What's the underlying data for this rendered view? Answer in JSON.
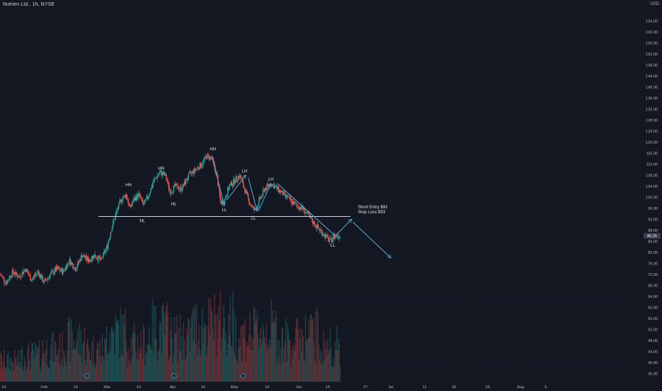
{
  "header": {
    "title": "Nutrien Ltd., 1h, NYSE",
    "currency": "USD"
  },
  "price_tag": "86.26",
  "colors": {
    "background": "#131722",
    "up": "#26a69a",
    "down": "#ef5350",
    "annotation": "#5b9cc7",
    "support_line": "#d1d4dc",
    "grid": "#1f2330"
  },
  "chart_data": {
    "type": "candlestick",
    "ylim": [
      33,
      168
    ],
    "y_ticks": [
      36,
      40,
      44,
      48,
      52,
      56,
      60,
      64,
      68,
      72,
      76,
      80,
      84,
      88,
      92,
      96,
      100,
      104,
      108,
      112,
      116,
      120,
      124,
      128,
      132,
      136,
      140,
      144,
      148,
      152,
      156,
      160,
      164
    ],
    "x_ticks": [
      {
        "label": "14",
        "t": 0.03
      },
      {
        "label": "Feb",
        "t": 0.35
      },
      {
        "label": "14",
        "t": 0.6
      },
      {
        "label": "Mar",
        "t": 0.85
      },
      {
        "label": "14",
        "t": 1.1
      },
      {
        "label": "Apr",
        "t": 1.37
      },
      {
        "label": "14",
        "t": 1.61
      },
      {
        "label": "May",
        "t": 1.86
      },
      {
        "label": "16",
        "t": 2.12
      },
      {
        "label": "Jun",
        "t": 2.37
      },
      {
        "label": "14",
        "t": 2.6
      },
      {
        "label": "27",
        "t": 2.9
      },
      {
        "label": "Jul",
        "t": 3.1
      },
      {
        "label": "11",
        "t": 3.37
      },
      {
        "label": "18",
        "t": 3.6
      },
      {
        "label": "25",
        "t": 3.87
      },
      {
        "label": "Aug",
        "t": 4.13
      },
      {
        "label": "5",
        "t": 4.33
      }
    ],
    "x_range": [
      0,
      5.1
    ],
    "price_path": [
      [
        0.0,
        72
      ],
      [
        0.05,
        69
      ],
      [
        0.1,
        73
      ],
      [
        0.15,
        71
      ],
      [
        0.2,
        74
      ],
      [
        0.25,
        70
      ],
      [
        0.3,
        73
      ],
      [
        0.35,
        69
      ],
      [
        0.4,
        72
      ],
      [
        0.45,
        74
      ],
      [
        0.5,
        73
      ],
      [
        0.55,
        77
      ],
      [
        0.6,
        74
      ],
      [
        0.65,
        79
      ],
      [
        0.7,
        77
      ],
      [
        0.75,
        79
      ],
      [
        0.8,
        77
      ],
      [
        0.85,
        82
      ],
      [
        0.88,
        88
      ],
      [
        0.92,
        94
      ],
      [
        0.96,
        99
      ],
      [
        1.0,
        101
      ],
      [
        1.03,
        96
      ],
      [
        1.06,
        99
      ],
      [
        1.1,
        101
      ],
      [
        1.14,
        97
      ],
      [
        1.18,
        101
      ],
      [
        1.22,
        106
      ],
      [
        1.27,
        109
      ],
      [
        1.31,
        108
      ],
      [
        1.35,
        102
      ],
      [
        1.39,
        104
      ],
      [
        1.44,
        103
      ],
      [
        1.5,
        108
      ],
      [
        1.55,
        110
      ],
      [
        1.6,
        112
      ],
      [
        1.64,
        115
      ],
      [
        1.68,
        114
      ],
      [
        1.72,
        108
      ],
      [
        1.75,
        98
      ],
      [
        1.78,
        99
      ],
      [
        1.82,
        104
      ],
      [
        1.86,
        106
      ],
      [
        1.9,
        108
      ],
      [
        1.94,
        103
      ],
      [
        1.98,
        98
      ],
      [
        2.02,
        95
      ],
      [
        2.06,
        99
      ],
      [
        2.1,
        103
      ],
      [
        2.15,
        105
      ],
      [
        2.2,
        103
      ],
      [
        2.25,
        101
      ],
      [
        2.3,
        99
      ],
      [
        2.35,
        97
      ],
      [
        2.4,
        96
      ],
      [
        2.45,
        93
      ],
      [
        2.5,
        90
      ],
      [
        2.54,
        88
      ],
      [
        2.58,
        86
      ],
      [
        2.62,
        84
      ],
      [
        2.66,
        86
      ],
      [
        2.7,
        86
      ]
    ],
    "volume_profile": [
      0.35,
      0.45,
      0.55,
      0.7,
      0.55,
      0.85,
      0.65,
      0.9,
      0.75,
      0.95,
      1.0,
      0.8,
      0.9,
      0.7,
      0.8,
      0.6
    ],
    "volume_max_ratio": 0.25,
    "support_level": 93,
    "support_x": [
      0.78,
      2.78
    ],
    "labels": [
      {
        "text": "HH",
        "t": 1.02,
        "y": 104
      },
      {
        "text": "HL",
        "t": 1.13,
        "y": 91
      },
      {
        "text": "HH",
        "t": 1.28,
        "y": 110
      },
      {
        "text": "HL",
        "t": 1.38,
        "y": 97
      },
      {
        "text": "HH",
        "t": 1.69,
        "y": 117
      },
      {
        "text": "LL",
        "t": 1.78,
        "y": 95
      },
      {
        "text": "LH",
        "t": 1.94,
        "y": 109
      },
      {
        "text": "LL",
        "t": 2.01,
        "y": 92
      },
      {
        "text": "LH",
        "t": 2.15,
        "y": 106
      },
      {
        "text": "LL",
        "t": 2.64,
        "y": 82
      }
    ],
    "arrows": [
      [
        [
          1.68,
          115
        ],
        [
          1.78,
          97
        ]
      ],
      [
        [
          1.8,
          99
        ],
        [
          1.95,
          108
        ]
      ],
      [
        [
          1.97,
          107
        ],
        [
          2.04,
          95
        ]
      ],
      [
        [
          2.05,
          95
        ],
        [
          2.15,
          105
        ]
      ],
      [
        [
          2.2,
          105
        ],
        [
          2.66,
          86
        ]
      ],
      [
        [
          2.66,
          86
        ],
        [
          2.79,
          92
        ]
      ],
      [
        [
          2.8,
          91
        ],
        [
          3.1,
          78
        ]
      ]
    ],
    "annotation": {
      "line1": "Short Entry $92",
      "line2": "Stop Loss $93",
      "t": 2.84,
      "y": 96
    },
    "event_markers": [
      {
        "text": "D",
        "t": 0.69
      },
      {
        "text": "D",
        "t": 1.38
      },
      {
        "text": "D",
        "t": 1.93
      }
    ]
  }
}
